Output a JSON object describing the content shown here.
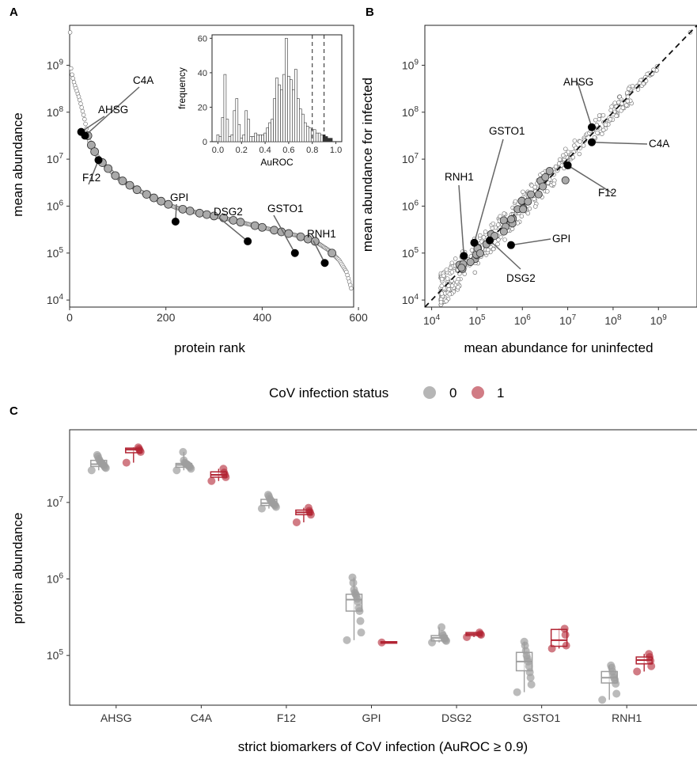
{
  "colors": {
    "uninfected": "#9e9e9e",
    "infected": "#b22534",
    "highlight": "#000000",
    "other_points": "#ffffff"
  },
  "panels": {
    "A": {
      "letter": "A",
      "xlabel": "protein rank",
      "ylabel": "mean abundance"
    },
    "B": {
      "letter": "B",
      "xlabel": "mean abundance for uninfected",
      "ylabel": "mean abundance for infected"
    },
    "C": {
      "letter": "C",
      "xlabel": "strict biomarkers of CoV infection (AuROC ≥ 0.9)",
      "ylabel": "protein abundance"
    }
  },
  "legend": {
    "title": "CoV infection status",
    "entries": [
      {
        "label": "0",
        "key": "uninfected"
      },
      {
        "label": "1",
        "key": "infected"
      }
    ],
    "position": "middle"
  },
  "chart_data": [
    {
      "id": "A",
      "type": "scatter",
      "xlabel": "protein rank",
      "ylabel": "mean abundance",
      "xlim": [
        0,
        590
      ],
      "ylim_log10": [
        3.85,
        9.85
      ],
      "y_scale": "log10",
      "x_ticks": [
        0,
        200,
        400,
        600
      ],
      "y_tick_labels": [
        "10^4",
        "10^5",
        "10^6",
        "10^7",
        "10^8",
        "10^9"
      ],
      "grid": false,
      "curve_log10": [
        [
          1,
          9.7
        ],
        [
          2,
          9.0
        ],
        [
          5,
          8.8
        ],
        [
          10,
          8.6
        ],
        [
          20,
          8.3
        ],
        [
          30,
          7.9
        ],
        [
          40,
          7.4
        ],
        [
          55,
          7.1
        ],
        [
          70,
          6.9
        ],
        [
          100,
          6.6
        ],
        [
          140,
          6.35
        ],
        [
          180,
          6.15
        ],
        [
          220,
          5.97
        ],
        [
          270,
          5.85
        ],
        [
          320,
          5.75
        ],
        [
          370,
          5.62
        ],
        [
          420,
          5.5
        ],
        [
          470,
          5.38
        ],
        [
          510,
          5.25
        ],
        [
          540,
          5.05
        ],
        [
          560,
          4.85
        ],
        [
          575,
          4.6
        ],
        [
          585,
          4.25
        ]
      ],
      "labeled_points": [
        {
          "label": "C4A",
          "rank": 32,
          "log10": 7.5
        },
        {
          "label": "AHSG",
          "rank": 24,
          "log10": 7.58
        },
        {
          "label": "F12",
          "rank": 60,
          "log10": 6.98
        },
        {
          "label": "GPI",
          "rank": 220,
          "log10": 5.67
        },
        {
          "label": "DSG2",
          "rank": 370,
          "log10": 5.25
        },
        {
          "label": "GSTO1",
          "rank": 468,
          "log10": 5.0
        },
        {
          "label": "RNH1",
          "rank": 530,
          "log10": 4.79
        }
      ],
      "inset": {
        "type": "bar",
        "xlabel": "AuROC",
        "ylabel": "frequency",
        "xlim": [
          -0.05,
          1.05
        ],
        "ylim": [
          0,
          62
        ],
        "x_ticks": [
          0.0,
          0.2,
          0.4,
          0.6,
          0.8,
          1.0
        ],
        "y_ticks": [
          0,
          20,
          40,
          60
        ],
        "vlines": [
          0.8,
          0.9
        ],
        "bins": [
          [
            0.0,
            4
          ],
          [
            0.02,
            3
          ],
          [
            0.04,
            14
          ],
          [
            0.06,
            39
          ],
          [
            0.08,
            13
          ],
          [
            0.1,
            3
          ],
          [
            0.12,
            4
          ],
          [
            0.14,
            18
          ],
          [
            0.16,
            25
          ],
          [
            0.18,
            10
          ],
          [
            0.2,
            2
          ],
          [
            0.22,
            4
          ],
          [
            0.24,
            18
          ],
          [
            0.26,
            13
          ],
          [
            0.28,
            3
          ],
          [
            0.3,
            3
          ],
          [
            0.32,
            5
          ],
          [
            0.34,
            4
          ],
          [
            0.36,
            4
          ],
          [
            0.38,
            4
          ],
          [
            0.4,
            5
          ],
          [
            0.42,
            8
          ],
          [
            0.44,
            11
          ],
          [
            0.46,
            13
          ],
          [
            0.48,
            25
          ],
          [
            0.5,
            37
          ],
          [
            0.52,
            33
          ],
          [
            0.54,
            30
          ],
          [
            0.56,
            39
          ],
          [
            0.58,
            60
          ],
          [
            0.6,
            38
          ],
          [
            0.62,
            36
          ],
          [
            0.64,
            30
          ],
          [
            0.66,
            42
          ],
          [
            0.68,
            25
          ],
          [
            0.7,
            19
          ],
          [
            0.72,
            16
          ],
          [
            0.74,
            11
          ],
          [
            0.76,
            9
          ],
          [
            0.78,
            8
          ],
          [
            0.8,
            7
          ],
          [
            0.82,
            7
          ],
          [
            0.84,
            5
          ],
          [
            0.86,
            5
          ],
          [
            0.88,
            4
          ],
          [
            0.9,
            4
          ],
          [
            0.92,
            3
          ],
          [
            0.94,
            2
          ],
          [
            0.96,
            2
          ]
        ]
      }
    },
    {
      "id": "B",
      "type": "scatter",
      "xlabel": "mean abundance for uninfected",
      "ylabel": "mean abundance for infected",
      "x_scale": "log10",
      "y_scale": "log10",
      "xlim_log10": [
        3.85,
        9.85
      ],
      "ylim_log10": [
        3.85,
        9.85
      ],
      "tick_labels": [
        "10^4",
        "10^5",
        "10^6",
        "10^7",
        "10^8",
        "10^9"
      ],
      "reference_line": "y = x (dashed)",
      "labeled_points": [
        {
          "label": "AHSG",
          "x_log10": 7.53,
          "y_log10": 7.68
        },
        {
          "label": "C4A",
          "x_log10": 7.53,
          "y_log10": 7.36
        },
        {
          "label": "F12",
          "x_log10": 7.0,
          "y_log10": 6.87
        },
        {
          "label": "GSTO1",
          "x_log10": 4.94,
          "y_log10": 5.22
        },
        {
          "label": "RNH1",
          "x_log10": 4.71,
          "y_log10": 4.94
        },
        {
          "label": "GPI",
          "x_log10": 5.75,
          "y_log10": 5.17
        },
        {
          "label": "DSG2",
          "x_log10": 5.28,
          "y_log10": 5.27
        }
      ]
    },
    {
      "id": "C",
      "type": "box",
      "xlabel": "strict biomarkers of CoV infection (AuROC ≥ 0.9)",
      "ylabel": "protein abundance",
      "y_scale": "log10",
      "ylim_log10": [
        4.35,
        7.95
      ],
      "y_tick_labels": [
        "10^5",
        "10^6",
        "10^7"
      ],
      "categories": [
        "AHSG",
        "C4A",
        "F12",
        "GPI",
        "DSG2",
        "GSTO1",
        "RNH1"
      ],
      "series": [
        {
          "name": "0",
          "groups": [
            {
              "q1": 7.47,
              "med": 7.5,
              "q3": 7.55,
              "points": [
                7.42,
                7.45,
                7.46,
                7.48,
                7.49,
                7.5,
                7.51,
                7.52,
                7.53,
                7.55,
                7.57,
                7.6,
                7.62
              ]
            },
            {
              "q1": 7.46,
              "med": 7.49,
              "q3": 7.51,
              "points": [
                7.42,
                7.44,
                7.46,
                7.47,
                7.48,
                7.49,
                7.5,
                7.5,
                7.51,
                7.52,
                7.55,
                7.66
              ]
            },
            {
              "q1": 6.96,
              "med": 6.99,
              "q3": 7.04,
              "points": [
                6.92,
                6.94,
                6.96,
                6.97,
                6.98,
                6.99,
                7.0,
                7.02,
                7.03,
                7.05,
                7.08,
                7.1
              ]
            },
            {
              "q1": 5.58,
              "med": 5.73,
              "q3": 5.8,
              "points": [
                5.2,
                5.3,
                5.45,
                5.58,
                5.62,
                5.7,
                5.74,
                5.78,
                5.8,
                5.82,
                5.86,
                5.95,
                6.02
              ]
            },
            {
              "q1": 5.19,
              "med": 5.23,
              "q3": 5.26,
              "points": [
                5.17,
                5.19,
                5.2,
                5.22,
                5.23,
                5.26,
                5.28,
                5.37
              ]
            },
            {
              "q1": 4.8,
              "med": 4.92,
              "q3": 5.04,
              "points": [
                4.52,
                4.62,
                4.71,
                4.78,
                4.86,
                4.92,
                4.96,
                5.0,
                5.06,
                5.13,
                5.18
              ]
            },
            {
              "q1": 4.64,
              "med": 4.71,
              "q3": 4.79,
              "points": [
                4.42,
                4.5,
                4.63,
                4.68,
                4.71,
                4.75,
                4.79,
                4.84,
                4.87
              ]
            }
          ]
        },
        {
          "name": "1",
          "groups": [
            {
              "q1": 7.65,
              "med": 7.69,
              "q3": 7.71,
              "points": [
                7.52,
                7.66,
                7.68,
                7.7,
                7.72
              ]
            },
            {
              "q1": 7.33,
              "med": 7.36,
              "q3": 7.4,
              "points": [
                7.28,
                7.33,
                7.36,
                7.39,
                7.44
              ]
            },
            {
              "q1": 6.84,
              "med": 6.87,
              "q3": 6.9,
              "points": [
                6.74,
                6.84,
                6.87,
                6.89,
                6.93
              ]
            },
            {
              "q1": 5.16,
              "med": 5.17,
              "q3": 5.18,
              "points": [
                5.17
              ]
            },
            {
              "q1": 5.26,
              "med": 5.28,
              "q3": 5.3,
              "points": [
                5.24,
                5.27,
                5.28,
                5.3
              ]
            },
            {
              "q1": 5.12,
              "med": 5.2,
              "q3": 5.34,
              "points": [
                5.09,
                5.13,
                5.27,
                5.35
              ]
            },
            {
              "q1": 4.89,
              "med": 4.94,
              "q3": 4.98,
              "points": [
                4.79,
                4.86,
                4.93,
                4.98,
                5.02
              ]
            }
          ]
        }
      ]
    }
  ]
}
